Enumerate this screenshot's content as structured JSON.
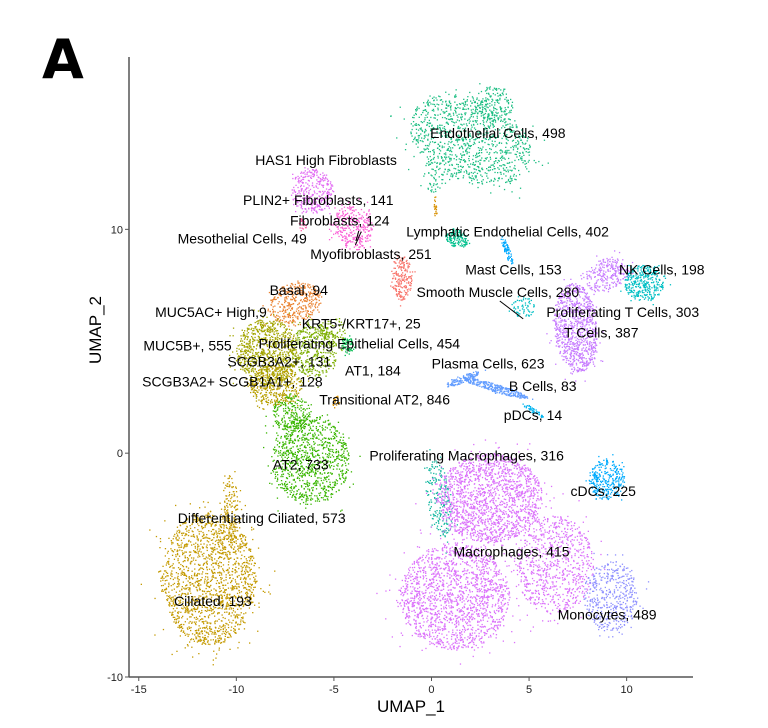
{
  "panel_label": "A",
  "chart_data": {
    "type": "scatter",
    "xlabel": "UMAP_1",
    "ylabel": "UMAP_2",
    "xlim": [
      -15.5,
      13.4
    ],
    "ylim": [
      -10,
      17.7
    ],
    "xticks": [
      -15,
      -10,
      -5,
      0,
      5,
      10
    ],
    "yticks": [
      -10,
      0,
      10
    ],
    "grid": false,
    "legend": "none",
    "clusters": [
      {
        "label": "Endothelial Cells, 498",
        "color": "#1DBE83",
        "label_at": [
          3.4,
          14.3
        ],
        "blobs": [
          [
            2.0,
            14.0,
            3.2,
            1.9,
            -0.3,
            1100
          ],
          [
            3.2,
            15.6,
            1.0,
            0.8,
            0,
            150
          ],
          [
            0.2,
            12.4,
            0.6,
            0.8,
            0,
            60
          ]
        ]
      },
      {
        "label": "HAS1   High   Fibroblasts",
        "color": "#E26BF3",
        "label_at": [
          -5.4,
          13.1
        ],
        "blobs": [
          [
            -6.1,
            11.7,
            1.1,
            1.0,
            0,
            320
          ]
        ]
      },
      {
        "label": "PLIN2+ Fibroblasts, 141",
        "color": "#E26BF3",
        "label_at": [
          -5.8,
          11.3
        ],
        "blobs": []
      },
      {
        "label": "Fibroblasts, 124",
        "color": "#FB61D7",
        "label_at": [
          -4.7,
          10.4
        ],
        "blobs": [
          [
            -4.0,
            10.1,
            1.1,
            0.9,
            -0.5,
            320
          ]
        ]
      },
      {
        "label": "/",
        "color": "#FB61D7",
        "label_at": [
          -3.8,
          9.7
        ],
        "blobs": []
      },
      {
        "label": "Mesothelial Cells, 49",
        "color": "#FF61A8",
        "label_at": [
          -9.7,
          9.6
        ],
        "blobs": [
          [
            -6.6,
            10.2,
            0.2,
            0.3,
            0,
            20
          ]
        ]
      },
      {
        "label": "Myofibroblasts, 251",
        "color": "#FB61D7",
        "label_at": [
          -3.1,
          8.9
        ],
        "blobs": []
      },
      {
        "label": "Lymphatic Endothelial Cells, 402",
        "color": "#00C08D",
        "label_at": [
          3.9,
          9.9
        ],
        "blobs": [
          [
            1.3,
            9.6,
            0.6,
            0.4,
            -0.4,
            150
          ]
        ]
      },
      {
        "label": "Mast Cells, 153",
        "color": "#00A9FF",
        "label_at": [
          4.2,
          8.2
        ],
        "blobs": [
          [
            3.9,
            9.0,
            0.15,
            0.6,
            0.4,
            70
          ]
        ]
      },
      {
        "label": "NK Cells, 198",
        "color": "#00BFC4",
        "label_at": [
          11.8,
          8.2
        ],
        "blobs": [
          [
            10.9,
            7.6,
            1.0,
            0.8,
            0,
            350
          ]
        ]
      },
      {
        "label": "Smooth Muscle Cells, 280",
        "color": "#F8766D",
        "label_at": [
          3.4,
          7.2
        ],
        "blobs": [
          [
            -1.5,
            7.8,
            0.5,
            1.0,
            0,
            200
          ]
        ]
      },
      {
        "label": "Proliferating T Cells, 303",
        "color": "#00BFC4",
        "label_at": [
          9.8,
          6.3
        ],
        "blobs": [
          [
            4.7,
            6.5,
            0.6,
            0.5,
            0,
            60
          ]
        ]
      },
      {
        "label": "T Cells, 387",
        "color": "#C77CFF",
        "label_at": [
          8.7,
          5.4
        ],
        "blobs": [
          [
            7.4,
            5.6,
            1.1,
            2.0,
            0.1,
            900
          ],
          [
            9.0,
            8.0,
            1.2,
            0.7,
            0.3,
            250
          ]
        ]
      },
      {
        "label": "Basal, 94",
        "color": "#EA8331",
        "label_at": [
          -6.8,
          7.3
        ],
        "blobs": [
          [
            -7.0,
            6.7,
            1.4,
            0.9,
            0.2,
            400
          ]
        ]
      },
      {
        "label": "MUC5AC+  High,9",
        "color": "#EA8331",
        "label_at": [
          -11.3,
          6.3
        ],
        "blobs": []
      },
      {
        "label": "KRT5-/KRT17+, 25",
        "color": "#7CAE00",
        "label_at": [
          -3.6,
          5.8
        ],
        "blobs": [
          [
            -5.0,
            5.4,
            0.6,
            0.6,
            0,
            80
          ]
        ]
      },
      {
        "label": "Proliferating Epithelial Cells, 454",
        "color": "#7CAE00",
        "label_at": [
          -3.7,
          4.9
        ],
        "blobs": [
          [
            -6.0,
            4.6,
            1.2,
            1.2,
            0,
            400
          ]
        ]
      },
      {
        "label": "MUC5B+, 555",
        "color": "#A3A500",
        "label_at": [
          -12.5,
          4.8
        ],
        "blobs": [
          [
            -8.4,
            4.5,
            1.6,
            1.5,
            0,
            900
          ]
        ]
      },
      {
        "label": "SCGB3A2+, 131",
        "color": "#B79F00",
        "label_at": [
          -7.8,
          4.1
        ],
        "blobs": [
          [
            -8.0,
            3.0,
            1.4,
            0.9,
            0,
            400
          ]
        ]
      },
      {
        "label": "AT1, 184",
        "color": "#00BB4E",
        "label_at": [
          -3.0,
          3.7
        ],
        "blobs": [
          [
            -4.3,
            4.8,
            0.3,
            0.4,
            0,
            60
          ]
        ]
      },
      {
        "label": "SCGB3A2+ SCGB1A1+, 128",
        "color": "#B79F00",
        "label_at": [
          -10.2,
          3.2
        ],
        "blobs": []
      },
      {
        "label": "Transitional AT2,  846",
        "color": "#D89000",
        "label_at": [
          -2.4,
          2.4
        ],
        "blobs": [
          [
            -4.9,
            2.3,
            0.2,
            0.3,
            0,
            20
          ],
          [
            0.2,
            11.0,
            0.1,
            0.5,
            0,
            20
          ]
        ]
      },
      {
        "label": "Plasma Cells, 623",
        "color": "#619CFF",
        "label_at": [
          2.9,
          4.0
        ],
        "blobs": [
          [
            3.3,
            2.9,
            1.7,
            0.18,
            -0.25,
            300
          ],
          [
            1.6,
            3.3,
            0.9,
            0.15,
            0.35,
            120
          ]
        ]
      },
      {
        "label": "B Cells, 83",
        "color": "#619CFF",
        "label_at": [
          5.7,
          3.0
        ],
        "blobs": []
      },
      {
        "label": "pDCs, 14",
        "color": "#00B4EF",
        "label_at": [
          5.2,
          1.7
        ],
        "blobs": [
          [
            5.2,
            1.9,
            0.6,
            0.12,
            -0.5,
            50
          ]
        ]
      },
      {
        "label": "AT2, 733",
        "color": "#39B600",
        "label_at": [
          -6.7,
          -0.5
        ],
        "blobs": [
          [
            -6.2,
            -0.3,
            2.0,
            2.0,
            0.2,
            1000
          ],
          [
            -7.2,
            1.8,
            1.0,
            0.8,
            0,
            200
          ]
        ]
      },
      {
        "label": "Proliferating  Macrophages,  316",
        "color": "#13B7A0",
        "label_at": [
          1.8,
          -0.1
        ],
        "blobs": [
          [
            0.4,
            -2.0,
            0.6,
            1.8,
            0.2,
            200
          ]
        ]
      },
      {
        "label": "cDCs, 225",
        "color": "#00ABFD",
        "label_at": [
          8.8,
          -1.7
        ],
        "blobs": [
          [
            9.0,
            -1.2,
            0.9,
            0.9,
            0,
            300
          ]
        ]
      },
      {
        "label": "Differentiating Ciliated, 573",
        "color": "#C49A00",
        "label_at": [
          -8.7,
          -2.9
        ],
        "blobs": [
          [
            -10.3,
            -2.6,
            0.4,
            1.6,
            0,
            150
          ]
        ]
      },
      {
        "label": "Macrophages, 415",
        "color": "#DB72FB",
        "label_at": [
          4.1,
          -4.4
        ],
        "blobs": [
          [
            3.0,
            -2.0,
            2.7,
            2.0,
            0,
            1700
          ],
          [
            1.2,
            -6.4,
            2.8,
            2.4,
            0,
            1700
          ],
          [
            6.3,
            -5.0,
            2.0,
            2.2,
            0,
            800
          ]
        ]
      },
      {
        "label": "Ciliated, 193",
        "color": "#C49A00",
        "label_at": [
          -11.2,
          -6.6
        ],
        "blobs": [
          [
            -11.4,
            -5.6,
            2.4,
            3.0,
            0,
            1700
          ]
        ]
      },
      {
        "label": "Monocytes, 489",
        "color": "#8F91FF",
        "label_at": [
          9.0,
          -7.2
        ],
        "blobs": [
          [
            9.2,
            -6.4,
            1.4,
            1.6,
            0,
            450
          ]
        ]
      }
    ],
    "annotation_lines": [
      [
        [
          3.5,
          6.8
        ],
        [
          4.7,
          6.0
        ]
      ],
      [
        [
          -3.6,
          9.9
        ],
        [
          -3.9,
          9.3
        ]
      ]
    ]
  }
}
